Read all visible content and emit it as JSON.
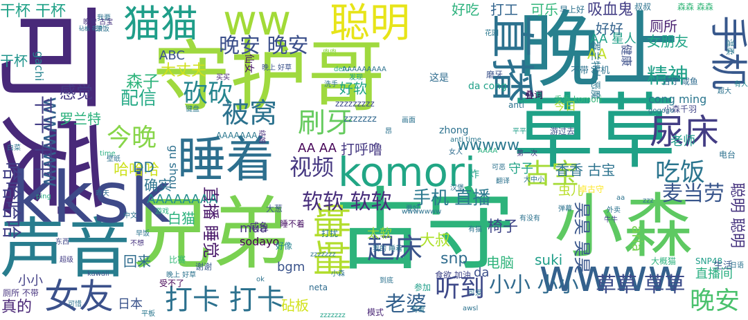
{
  "words": [
    {
      "text": "守护哥",
      "color": "#9fd93f"
    },
    {
      "text": "晚上",
      "color": "#27808e"
    },
    {
      "text": "古守",
      "color": "#2db37b"
    },
    {
      "text": "兄弟",
      "color": "#7ad151"
    },
    {
      "text": "草草",
      "color": "#1fa187"
    },
    {
      "text": "可爱",
      "color": "#482979"
    },
    {
      "text": "声音",
      "color": "#287d8e"
    },
    {
      "text": "kksk",
      "color": "#3e4a89"
    },
    {
      "text": "小森",
      "color": "#5ec962"
    },
    {
      "text": "睡着",
      "color": "#2d6f8e"
    },
    {
      "text": "komori",
      "color": "#21a685"
    },
    {
      "text": "ww",
      "color": "#a2da37"
    },
    {
      "text": "直播",
      "color": "#2c718e"
    },
    {
      "text": "wwww",
      "color": "#34618d"
    },
    {
      "text": "猫猫",
      "color": "#1f9e89"
    },
    {
      "text": "手机",
      "color": "#38588c"
    },
    {
      "text": "聪明",
      "color": "#e7e419"
    },
    {
      "text": "尿床",
      "color": "#433d84"
    },
    {
      "text": "被窝",
      "color": "#2c728e"
    },
    {
      "text": "晚安 晚安",
      "color": "#3c508b"
    },
    {
      "text": "刷牙",
      "color": "#65cb5e"
    },
    {
      "text": "砍砍",
      "color": "#25858e"
    },
    {
      "text": "今晚",
      "color": "#87d549"
    },
    {
      "text": "wwwww",
      "color": "#34618d"
    },
    {
      "text": "平平 平平",
      "color": "#433e85"
    },
    {
      "text": "女友",
      "color": "#3b518b"
    },
    {
      "text": "起床",
      "color": "#3a538b"
    },
    {
      "text": "蛐蛐",
      "color": "#b2dd2d"
    },
    {
      "text": "打卡 打卡",
      "color": "#2c718e"
    },
    {
      "text": "小小 小小",
      "color": "#306a8e"
    },
    {
      "text": "草草 草草",
      "color": "#3d4d8a"
    },
    {
      "text": "吃饭",
      "color": "#2b758e"
    },
    {
      "text": "古宝",
      "color": "#a5db36"
    },
    {
      "text": "晚安",
      "color": "#4ac16d"
    },
    {
      "text": "视频",
      "color": "#453781"
    },
    {
      "text": "听到",
      "color": "#3e4989"
    },
    {
      "text": "软软 软软",
      "color": "#472d7b"
    },
    {
      "text": "精神",
      "color": "#1fa088"
    },
    {
      "text": "麦当劳",
      "color": "#39568c"
    },
    {
      "text": "哈哈哈",
      "color": "#cde11d"
    },
    {
      "text": "哈哈哈哈",
      "color": "#424086"
    },
    {
      "text": "老婆",
      "color": "#34618d"
    },
    {
      "text": "手机 直播",
      "color": "#2a788e"
    },
    {
      "text": "直播 睡觉",
      "color": "#481769"
    },
    {
      "text": "昊昊 昊昊",
      "color": "#39568c"
    },
    {
      "text": "聪明 聪明",
      "color": "#46337f"
    },
    {
      "text": "感觉",
      "color": "#443983"
    },
    {
      "text": "配信",
      "color": "#22a884"
    },
    {
      "text": "森子",
      "color": "#2fb47c"
    },
    {
      "text": "大丈夫",
      "color": "#d0e11c"
    },
    {
      "text": "好吃",
      "color": "#2db27d"
    },
    {
      "text": "打工",
      "color": "#32648e"
    },
    {
      "text": "可乐",
      "color": "#32b67a"
    },
    {
      "text": "吸血鬼",
      "color": "#433e85"
    },
    {
      "text": "好好",
      "color": "#33638d"
    },
    {
      "text": "厕所",
      "color": "#481f70"
    },
    {
      "text": "女朋友",
      "color": "#20a486"
    },
    {
      "text": "AA 星人",
      "color": "#1f9f88"
    },
    {
      "text": "AA",
      "color": "#c0df25"
    },
    {
      "text": "健康",
      "color": "#3c4f8a"
    },
    {
      "text": "ABC",
      "color": "#3b528b"
    },
    {
      "text": "干杯 干杯",
      "color": "#1fa187"
    },
    {
      "text": "干杯",
      "color": "#1f948c"
    },
    {
      "text": "wwwww",
      "color": "#2a778e"
    },
    {
      "text": "打呼噜",
      "color": "#453882"
    },
    {
      "text": "AA AA",
      "color": "#450457"
    },
    {
      "text": "DD",
      "color": "#2a788e"
    },
    {
      "text": "确实",
      "color": "#2c728e"
    },
    {
      "text": "香香 古宝",
      "color": "#2c738e"
    },
    {
      "text": "守子",
      "color": "#20a386"
    },
    {
      "text": "AAAAAAAA",
      "color": "#228d8d"
    },
    {
      "text": "白猫",
      "color": "#2db27d"
    },
    {
      "text": "椅子",
      "color": "#404688"
    },
    {
      "text": "snp",
      "color": "#2f6c8e"
    },
    {
      "text": "大叔",
      "color": "#ade028"
    },
    {
      "text": "太软",
      "color": "#9dd93b"
    },
    {
      "text": "电脑",
      "color": "#2fb47c"
    },
    {
      "text": "suki",
      "color": "#1f9e89"
    },
    {
      "text": "直播间",
      "color": "#28ae80"
    },
    {
      "text": "aria",
      "color": "#7ad151"
    },
    {
      "text": "罗兰特",
      "color": "#2db27d"
    },
    {
      "text": "好软",
      "color": "#20a486"
    },
    {
      "text": "mua",
      "color": "#46327e"
    },
    {
      "text": "sodayo",
      "color": "#440154"
    },
    {
      "text": "bgm",
      "color": "#3a538b"
    },
    {
      "text": "回来",
      "color": "#2f6c8e"
    },
    {
      "text": "真的",
      "color": "#482475"
    },
    {
      "text": "日本",
      "color": "#3a538b"
    },
    {
      "text": "砧板",
      "color": "#d2e21b"
    },
    {
      "text": "小小",
      "color": "#424086"
    },
    {
      "text": "da",
      "color": "#3c508b"
    },
    {
      "text": "cong ming",
      "color": "#2a768e"
    },
    {
      "text": "da cong",
      "color": "#1fa088"
    },
    {
      "text": "gu shou",
      "color": "#2d708e"
    },
    {
      "text": "gachi",
      "color": "#25838e"
    },
    {
      "text": "zhong",
      "color": "#2c718e"
    },
    {
      "text": "zzzzzzz",
      "color": "#31678e"
    },
    {
      "text": "zzzzzzzzz",
      "color": "#3e4a89"
    },
    {
      "text": "AAAAAAA",
      "color": "#2a778e"
    },
    {
      "text": "炸",
      "color": "#1fa188"
    },
    {
      "text": "今日",
      "color": "#b5de2b"
    },
    {
      "text": "老师",
      "color": "#1f9a8a"
    },
    {
      "text": "罗兰特大恶魔",
      "color": "#2a778e"
    },
    {
      "text": "古守 咸鱼",
      "color": "#2f6b8e"
    },
    {
      "text": "温柔",
      "color": "#2a778e"
    },
    {
      "text": "叠词",
      "color": "#440154"
    },
    {
      "text": "香香 komori",
      "color": "#35b779"
    },
    {
      "text": "小森千羽",
      "color": "#404387"
    },
    {
      "text": "gogogo",
      "color": "#2b748e"
    },
    {
      "text": "游过去",
      "color": "#3b528b"
    },
    {
      "text": "电台",
      "color": "#2c718e"
    },
    {
      "text": "虫儿",
      "color": "#b8de29"
    },
    {
      "text": "卓古守",
      "color": "#fde725"
    },
    {
      "text": "SNP48",
      "color": "#1f9e89"
    },
    {
      "text": "生活",
      "color": "#38598c"
    },
    {
      "text": "大概猫",
      "color": "#2db27d"
    },
    {
      "text": "有人",
      "color": "#25838e"
    },
    {
      "text": "不带 手机",
      "color": "#2c728e"
    },
    {
      "text": "早上好",
      "color": "#2c718e"
    },
    {
      "text": "叔叔",
      "color": "#2c728e"
    },
    {
      "text": "森森 森森",
      "color": "#35b779"
    },
    {
      "text": "咸鱼",
      "color": "#46327e"
    },
    {
      "text": "睡不着",
      "color": "#471164"
    },
    {
      "text": "大葱",
      "color": "#3b528b"
    },
    {
      "text": "打扰",
      "color": "#2a778e"
    },
    {
      "text": "好像",
      "color": "#25838e"
    },
    {
      "text": "食欲 加油",
      "color": "#404688"
    },
    {
      "text": "谢谢",
      "color": "#38598c"
    },
    {
      "text": "比赛",
      "color": "#35b779"
    },
    {
      "text": "参加",
      "color": "#1f9e89"
    },
    {
      "text": "受不了",
      "color": "#440154"
    },
    {
      "text": "厕所 不带",
      "color": "#46337f"
    },
    {
      "text": "可惜",
      "color": "#2c728e"
    },
    {
      "text": "平板",
      "color": "#2a778e"
    },
    {
      "text": "模式",
      "color": "#482576"
    },
    {
      "text": "可爱",
      "color": "#2a778e"
    },
    {
      "text": "kawaii",
      "color": "#3b528b"
    },
    {
      "text": "neta",
      "color": "#2f6c8e"
    },
    {
      "text": "ok",
      "color": "#2c728e"
    },
    {
      "text": "超级",
      "color": "#433e85"
    },
    {
      "text": "东西",
      "color": "#404688"
    },
    {
      "text": "早饭",
      "color": "#2c728e"
    },
    {
      "text": "不想",
      "color": "#46337f"
    },
    {
      "text": "游戏",
      "color": "#29af7f"
    },
    {
      "text": "中文",
      "color": "#2c728e"
    },
    {
      "text": "ping",
      "color": "#27ad81"
    },
    {
      "text": "昨天",
      "color": "#2f6c8e"
    },
    {
      "text": "白菜",
      "color": "#2c728e"
    },
    {
      "text": "time",
      "color": "#27ad81"
    },
    {
      "text": "壁纸",
      "color": "#2c728e"
    },
    {
      "text": "花园",
      "color": "#2a778e"
    },
    {
      "text": "磨牙",
      "color": "#3b528b"
    },
    {
      "text": "这是",
      "color": "#2f6c8e"
    },
    {
      "text": "发现",
      "color": "#20a486"
    },
    {
      "text": "洗手",
      "color": "#2c728e"
    },
    {
      "text": "detu",
      "color": "#27ad81"
    },
    {
      "text": "肉肉",
      "color": "#8fd744"
    },
    {
      "text": "晚上 好草",
      "color": "#3b528b"
    },
    {
      "text": "仙女",
      "color": "#481769"
    },
    {
      "text": "颈饭",
      "color": "#2c728e"
    },
    {
      "text": "砧板 花音",
      "color": "#2c728e"
    },
    {
      "text": "我要",
      "color": "#2c728e"
    },
    {
      "text": "晚安 古宝",
      "color": "#46337f"
    },
    {
      "text": "键盘",
      "color": "#2a778e"
    },
    {
      "text": "买买",
      "color": "#482576"
    },
    {
      "text": "anti",
      "color": "#2c728e"
    },
    {
      "text": "anti time",
      "color": "#2a778e"
    },
    {
      "text": "平平",
      "color": "#1f9e89"
    },
    {
      "text": "AAAA",
      "color": "#29af7f"
    },
    {
      "text": "结婚",
      "color": "#472d7b"
    },
    {
      "text": "女人",
      "color": "#2f6c8e"
    },
    {
      "text": "第一次",
      "color": "#46337f"
    },
    {
      "text": "可恶",
      "color": "#2c728e"
    },
    {
      "text": "翻译",
      "color": "#2c728e"
    },
    {
      "text": "大中小",
      "color": "#2c728e"
    },
    {
      "text": "汉堡",
      "color": "#2c728e"
    },
    {
      "text": "弹幕",
      "color": "#2c728e"
    },
    {
      "text": "牛牛",
      "color": "#404688"
    },
    {
      "text": "外卖",
      "color": "#2c728e"
    },
    {
      "text": "zzz",
      "color": "#2c728e"
    },
    {
      "text": "aa",
      "color": "#2c728e"
    },
    {
      "text": "要好",
      "color": "#2c728e"
    },
    {
      "text": "wwwwwww",
      "color": "#2c728e"
    },
    {
      "text": "有没有",
      "color": "#2c728e"
    },
    {
      "text": "有猫",
      "color": "#2c728e"
    },
    {
      "text": "我的 睡着",
      "color": "#2c728e"
    },
    {
      "text": "小森",
      "color": "#2c728e"
    },
    {
      "text": "zzzzzzz",
      "color": "#2c728e"
    },
    {
      "text": "awsl",
      "color": "#2c728e"
    },
    {
      "text": "可爱",
      "color": "#2c728e"
    },
    {
      "text": "晚上 好草",
      "color": "#2c728e"
    },
    {
      "text": "zzzzzzz",
      "color": "#1fa187"
    },
    {
      "text": "AAAAAAAAA",
      "color": "#2c728e"
    },
    {
      "text": "昂",
      "color": "#2c728e"
    },
    {
      "text": "画面",
      "color": "#2c728e"
    },
    {
      "text": "超大",
      "color": "#2c728e"
    },
    {
      "text": "日语",
      "color": "#2c728e"
    },
    {
      "text": "到底",
      "color": "#2c728e"
    }
  ]
}
